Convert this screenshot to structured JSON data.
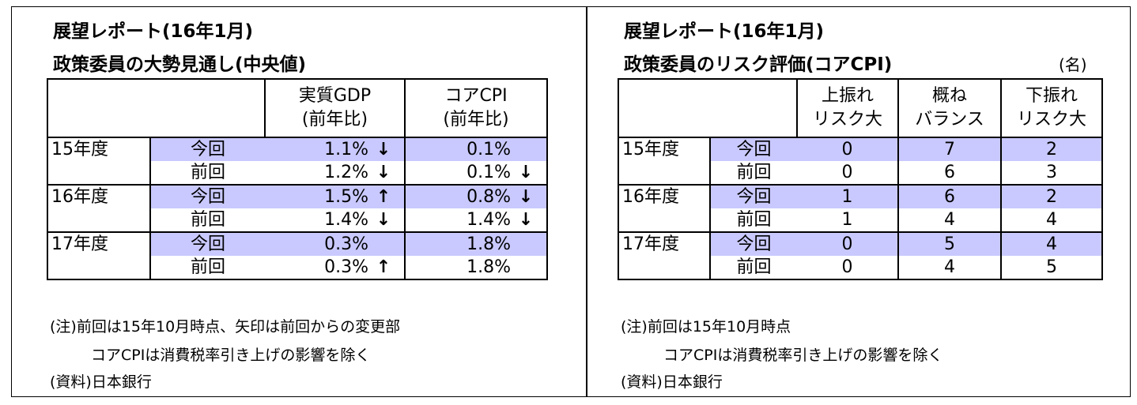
{
  "left_panel": {
    "title1": "展望レポート(16年1月)",
    "title2": "政策委員の大勢見通し(中央値)",
    "headers": [
      "実質GDP\n(前年比)",
      "コアCPI\n(前年比)"
    ],
    "header_gdp_1": "実質GDP",
    "header_gdp_2": "(前年比)",
    "header_cpi_1": "コアCPI",
    "header_cpi_2": "(前年比)",
    "rows": [
      {
        "year": "15年度",
        "this": {
          "label": "今回",
          "gdp": "1.1%",
          "gdp_arrow": "↓",
          "cpi": "0.1%",
          "cpi_arrow": ""
        },
        "prev": {
          "label": "前回",
          "gdp": "1.2%",
          "gdp_arrow": "↓",
          "cpi": "0.1%",
          "cpi_arrow": "↓"
        }
      },
      {
        "year": "16年度",
        "this": {
          "label": "今回",
          "gdp": "1.5%",
          "gdp_arrow": "↑",
          "cpi": "0.8%",
          "cpi_arrow": "↓"
        },
        "prev": {
          "label": "前回",
          "gdp": "1.4%",
          "gdp_arrow": "↓",
          "cpi": "1.4%",
          "cpi_arrow": "↓"
        }
      },
      {
        "year": "17年度",
        "this": {
          "label": "今回",
          "gdp": "0.3%",
          "gdp_arrow": "",
          "cpi": "1.8%",
          "cpi_arrow": ""
        },
        "prev": {
          "label": "前回",
          "gdp": "0.3%",
          "gdp_arrow": "↑",
          "cpi": "1.8%",
          "cpi_arrow": ""
        }
      }
    ],
    "note1": "(注)前回は15年10月時点、矢印は前回からの変更部",
    "note2": "コアCPIは消費税率引き上げの影響を除く",
    "source": "(資料)日本銀行"
  },
  "right_panel": {
    "title1": "展望レポート(16年1月)",
    "title2": "政策委員のリスク評価(コアCPI)",
    "unit": "(名)",
    "header_up_1": "上振れ",
    "header_up_2": "リスク大",
    "header_bal_1": "概ね",
    "header_bal_2": "バランス",
    "header_down_1": "下振れ",
    "header_down_2": "リスク大",
    "rows": [
      {
        "year": "15年度",
        "this": {
          "label": "今回",
          "up": "0",
          "bal": "7",
          "down": "2"
        },
        "prev": {
          "label": "前回",
          "up": "0",
          "bal": "6",
          "down": "3"
        }
      },
      {
        "year": "16年度",
        "this": {
          "label": "今回",
          "up": "1",
          "bal": "6",
          "down": "2"
        },
        "prev": {
          "label": "前回",
          "up": "1",
          "bal": "4",
          "down": "4"
        }
      },
      {
        "year": "17年度",
        "this": {
          "label": "今回",
          "up": "0",
          "bal": "5",
          "down": "4"
        },
        "prev": {
          "label": "前回",
          "up": "0",
          "bal": "4",
          "down": "5"
        }
      }
    ],
    "note1": "(注)前回は15年10月時点",
    "note2": "コアCPIは消費税率引き上げの影響を除く",
    "source": "(資料)日本銀行"
  },
  "colors": {
    "highlight": "#c9c9ff",
    "border": "#000000"
  }
}
